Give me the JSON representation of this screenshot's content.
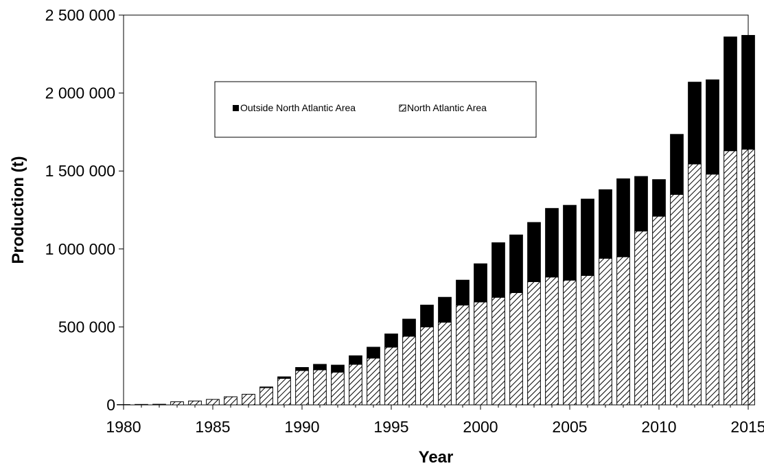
{
  "chart_data": {
    "type": "bar",
    "stacked": true,
    "xlabel": "Year",
    "ylabel": "Production (t)",
    "ylim": [
      0,
      2500000
    ],
    "yticks": [
      0,
      500000,
      1000000,
      1500000,
      2000000,
      2500000
    ],
    "ytick_labels": [
      "0",
      "500 000",
      "1 000 000",
      "1 500 000",
      "2 000 000",
      "2 500 000"
    ],
    "xticks": [
      "1980",
      "1985",
      "1990",
      "1995",
      "2000",
      "2005",
      "2010",
      "2015"
    ],
    "grid": false,
    "legend_position": "top-center",
    "categories": [
      1980,
      1981,
      1982,
      1983,
      1984,
      1985,
      1986,
      1987,
      1988,
      1989,
      1990,
      1991,
      1992,
      1993,
      1994,
      1995,
      1996,
      1997,
      1998,
      1999,
      2000,
      2001,
      2002,
      2003,
      2004,
      2005,
      2006,
      2007,
      2008,
      2009,
      2010,
      2011,
      2012,
      2013,
      2014,
      2015
    ],
    "series": [
      {
        "name": "North Atlantic Area",
        "pattern": "hatched",
        "values": [
          2000,
          3000,
          4000,
          20000,
          25000,
          35000,
          52000,
          68000,
          110000,
          170000,
          220000,
          225000,
          210000,
          260000,
          300000,
          370000,
          440000,
          500000,
          530000,
          640000,
          660000,
          690000,
          720000,
          790000,
          820000,
          800000,
          830000,
          940000,
          950000,
          1115000,
          1210000,
          1350000,
          1545000,
          1480000,
          1630000,
          1640000
        ]
      },
      {
        "name": "Outside North Atlantic Area",
        "pattern": "solid-black",
        "values": [
          0,
          0,
          0,
          0,
          0,
          0,
          0,
          0,
          5000,
          10000,
          20000,
          35000,
          45000,
          55000,
          70000,
          85000,
          110000,
          140000,
          160000,
          160000,
          245000,
          350000,
          370000,
          380000,
          440000,
          480000,
          490000,
          440000,
          500000,
          350000,
          235000,
          385000,
          525000,
          605000,
          730000,
          730000
        ]
      }
    ]
  },
  "legend": {
    "items": [
      {
        "label": "Outside North Atlantic Area",
        "color": "#000000"
      },
      {
        "label": "North Atlantic Area",
        "color": "hatched"
      }
    ]
  }
}
